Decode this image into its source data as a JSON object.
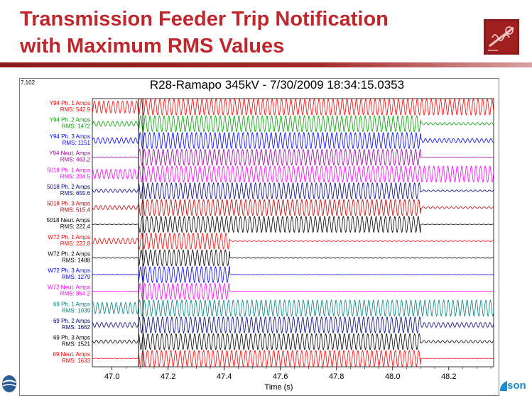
{
  "slide": {
    "title_line1": "Transmission Feeder Trip Notification",
    "title_line2": "with Maximum RMS Values",
    "footer_brand_fragment": "son"
  },
  "colors": {
    "title": "#c0272d",
    "rule": "#8b1a1a",
    "red": "#ff0000",
    "green": "#00a000",
    "blue": "#0000ff",
    "purple": "#9b009b",
    "magenta": "#ff00ff",
    "navy": "#000080",
    "darkred": "#c00000",
    "black": "#000000",
    "teal": "#008080"
  },
  "chart_data": {
    "type": "line",
    "title": "R28-Ramapo 345kV - 7/30/2009 18:34:15.0353",
    "corner_value": "7.102",
    "xlabel": "Time (s)",
    "xlim": [
      46.93,
      48.36
    ],
    "xticks": [
      47.0,
      47.2,
      47.4,
      47.6,
      47.8,
      48.0,
      48.2
    ],
    "x_tick_labels": [
      "47.0",
      "47.2",
      "47.4",
      "47.6",
      "47.8",
      "48.0",
      "48.2"
    ],
    "cursor_times": [
      47.095,
      47.11
    ],
    "series": [
      {
        "name": "Y94 Ph. 1 Amps",
        "rms_label": "RMS: 542.9",
        "rms": 542.9,
        "color": "#ff0000",
        "trip_time": null,
        "pre_amp": 0.75,
        "post_amp": 0.75
      },
      {
        "name": "Y94 Ph. 2 Amps",
        "rms_label": "RMS: 1472",
        "rms": 1472,
        "color": "#00a000",
        "trip_time": 48.1,
        "pre_amp": 0.3,
        "post_amp": 0.15
      },
      {
        "name": "Y94 Ph. 3 Amps",
        "rms_label": "RMS: 1151",
        "rms": 1151,
        "color": "#0000ff",
        "trip_time": 48.1,
        "pre_amp": 0.35,
        "post_amp": 0.25
      },
      {
        "name": "Y94 Neut. Amps",
        "rms_label": "RMS: 463.2",
        "rms": 463.2,
        "color": "#9b009b",
        "trip_time": 48.1,
        "pre_amp": 0.05,
        "post_amp": 0.02
      },
      {
        "name": "5018 Ph. 1 Amps",
        "rms_label": "RMS: 204.5",
        "rms": 204.5,
        "color": "#ff00ff",
        "trip_time": null,
        "pre_amp": 0.6,
        "post_amp": 0.6
      },
      {
        "name": "5018 Ph. 2 Amps",
        "rms_label": "RMS: 655.6",
        "rms": 655.6,
        "color": "#000080",
        "trip_time": 48.1,
        "pre_amp": 0.2,
        "post_amp": 0.1
      },
      {
        "name": "5018 Ph. 3 Amps",
        "rms_label": "RMS: 515.4",
        "rms": 515.4,
        "color": "#c00000",
        "trip_time": 48.1,
        "pre_amp": 0.25,
        "post_amp": 0.1
      },
      {
        "name": "5018 Neut. Amps",
        "rms_label": "RMS: 222.4",
        "rms": 222.4,
        "color": "#000000",
        "trip_time": 48.1,
        "pre_amp": 0.03,
        "post_amp": 0.02
      },
      {
        "name": "W72 Ph. 1 Amps",
        "rms_label": "RMS: 223.8",
        "rms": 223.8,
        "color": "#ff0000",
        "trip_time": 47.42,
        "pre_amp": 0.35,
        "post_amp": 0.05
      },
      {
        "name": "W72 Ph. 2 Amps",
        "rms_label": "RMS: 1488",
        "rms": 1488,
        "color": "#000000",
        "trip_time": 47.42,
        "pre_amp": 0.05,
        "post_amp": 0.05
      },
      {
        "name": "W72 Ph. 3 Amps",
        "rms_label": "RMS: 1279",
        "rms": 1279,
        "color": "#0000ff",
        "trip_time": 47.42,
        "pre_amp": 0.05,
        "post_amp": 0.03
      },
      {
        "name": "W72 Neut. Amps",
        "rms_label": "RMS: 854.2",
        "rms": 854.2,
        "color": "#ff00ff",
        "trip_time": 47.42,
        "pre_amp": 0.03,
        "post_amp": 0.02
      },
      {
        "name": "69 Ph. 1 Amps",
        "rms_label": "RMS: 1039",
        "rms": 1039,
        "color": "#008080",
        "trip_time": null,
        "pre_amp": 0.7,
        "post_amp": 0.7
      },
      {
        "name": "69 Ph. 2 Amps",
        "rms_label": "RMS: 1662",
        "rms": 1662,
        "color": "#000080",
        "trip_time": 48.1,
        "pre_amp": 0.3,
        "post_amp": 0.3
      },
      {
        "name": "69 Ph. 3 Amps",
        "rms_label": "RMS: 1521",
        "rms": 1521,
        "color": "#000000",
        "trip_time": 48.1,
        "pre_amp": 0.2,
        "post_amp": 0.15
      },
      {
        "name": "69 Neut. Amps",
        "rms_label": "RMS: 1633",
        "rms": 1633,
        "color": "#ff0000",
        "trip_time": 48.1,
        "pre_amp": 0.03,
        "post_amp": 0.02
      }
    ]
  }
}
